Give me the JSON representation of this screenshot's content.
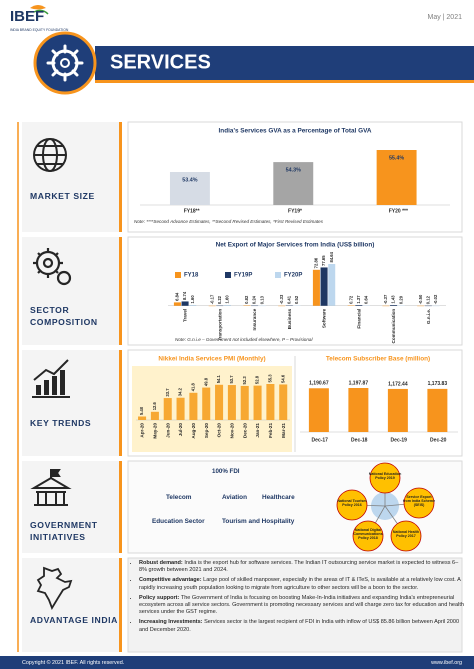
{
  "header": {
    "logo": "IBEF",
    "logo_tagline": "INDIA BRAND EQUITY FOUNDATION",
    "date": "May | 2021",
    "title": "SERVICES"
  },
  "section_labels": [
    "MARKET SIZE",
    "SECTOR COMPOSITION",
    "KEY TRENDS",
    "GOVERNMENT INITIATIVES",
    "ADVANTAGE INDIA"
  ],
  "market_size_note": "Note: ****Second Advance Estimates, **Second Revised Estimates, *First Revised Estimates",
  "sector_note": "Note: G.n.i.e – Government not included elsewhere, P – Provisional",
  "government": {
    "fdi_title": "100% FDI",
    "fdi_sectors": [
      "Telecom",
      "Aviation",
      "Healthcare",
      "Education Sector",
      "Tourism and Hospitality"
    ],
    "policies": [
      "National Education Policy 2019",
      "National Tourism Policy 2016",
      "Service Export from India Scheme (SEIS)",
      "National Digital Communications Policy 2018",
      "National Health Policy 2017"
    ]
  },
  "advantage": [
    {
      "lead": "Robust demand:",
      "text": "India is the export hub for software services. The Indian IT outsourcing service market is expected to witness 6–8% growth between 2021 and 2024."
    },
    {
      "lead": "Competitive advantage:",
      "text": "Large pool of skilled manpower, especially in the areas of IT & ITeS, is available at a relatively low cost. A rapidly increasing youth population looking to migrate from agriculture to other sectors will be a boon to the sector."
    },
    {
      "lead": "Policy support:",
      "text": "The Government of India is focusing on boosting Make-In-India initiatives and expanding India's entrepreneurial ecosystem across all service sectors. Government is promoting necessary services and will charge zero tax for education and health services under the GST regime."
    },
    {
      "lead": "Increasing Investments:",
      "text": "Services sector is the largest recipient of FDI in India with inflow of US$ 85.86 billion between April 2000 and December 2020."
    }
  ],
  "footer": {
    "copyright": "Copyright © 2021 IBEF. All rights reserved.",
    "url": "www.ibef.org"
  },
  "chart_data": [
    {
      "type": "bar",
      "title": "India's Services GVA as a Percentage of Total GVA",
      "categories": [
        "FY18**",
        "FY19*",
        "FY20 ***"
      ],
      "values": [
        53.4,
        54.3,
        55.4
      ],
      "value_labels": [
        "53.4%",
        "54.3%",
        "55.4%"
      ],
      "colors": [
        "#d6dce5",
        "#a5a5a5",
        "#f7941d"
      ]
    },
    {
      "type": "bar",
      "title": "Net Export of Major Services from India (US$ billion)",
      "categories": [
        "Travel",
        "Transportation",
        "Insurance",
        "Business",
        "Software",
        "Financial",
        "Communication",
        "G.n.i.e."
      ],
      "series": [
        {
          "name": "FY18",
          "color": "#f7941d",
          "values": [
            6.84,
            -0.17,
            0.82,
            -0.33,
            72.86,
            0.72,
            -0.37,
            -0.5
          ],
          "value_labels": [
            "6.84",
            "-0.17",
            "0.82",
            "-0.33",
            "72.86",
            "0.72",
            "-0.37",
            "-0.50"
          ]
        },
        {
          "name": "FY19P",
          "color": "#1f3864",
          "values": [
            8.74,
            0.22,
            0.24,
            0.41,
            77.65,
            1.37,
            1.43,
            0.12
          ],
          "value_labels": [
            "8.74",
            "0.22",
            "0.24",
            "0.41",
            "77.65",
            "1.37",
            "1.43",
            "0.12"
          ]
        },
        {
          "name": "FY20P",
          "color": "#bdd7ee",
          "values": [
            1.6,
            1.6,
            0.13,
            0.52,
            84.64,
            0.64,
            0.29,
            -0.02
          ],
          "value_labels": [
            "1.60",
            "1.60",
            "0.13",
            "0.52",
            "84.64",
            "0.64",
            "0.29",
            "-0.02"
          ]
        }
      ]
    },
    {
      "type": "bar",
      "title": "Nikkei India Services PMI (Monthly)",
      "categories": [
        "Apr-20",
        "May-20",
        "Jun-20",
        "Jul-20",
        "Aug-20",
        "Sep-20",
        "Oct-20",
        "Nov-20",
        "Dec-20",
        "Jan-21",
        "Feb-21",
        "Mar-21"
      ],
      "values": [
        5.4,
        12.6,
        33.7,
        34.2,
        41.8,
        49.8,
        54.1,
        53.7,
        52.3,
        52.8,
        55.3,
        54.6
      ],
      "value_labels": [
        "5.40",
        "12.6",
        "33.7",
        "34.2",
        "41.8",
        "49.8",
        "54.1",
        "53.7",
        "52.3",
        "52.8",
        "55.3",
        "54.6"
      ],
      "color": "#f7a832"
    },
    {
      "type": "bar",
      "title": "Telecom Subscriber Base (million)",
      "categories": [
        "Dec-17",
        "Dec-18",
        "Dec-19",
        "Dec-20"
      ],
      "values": [
        1190.67,
        1197.87,
        1172.44,
        1173.83
      ],
      "value_labels": [
        "1,190.67",
        "1,197.87",
        "1,172.44",
        "1,173.83"
      ],
      "color": "#f7941d"
    }
  ]
}
